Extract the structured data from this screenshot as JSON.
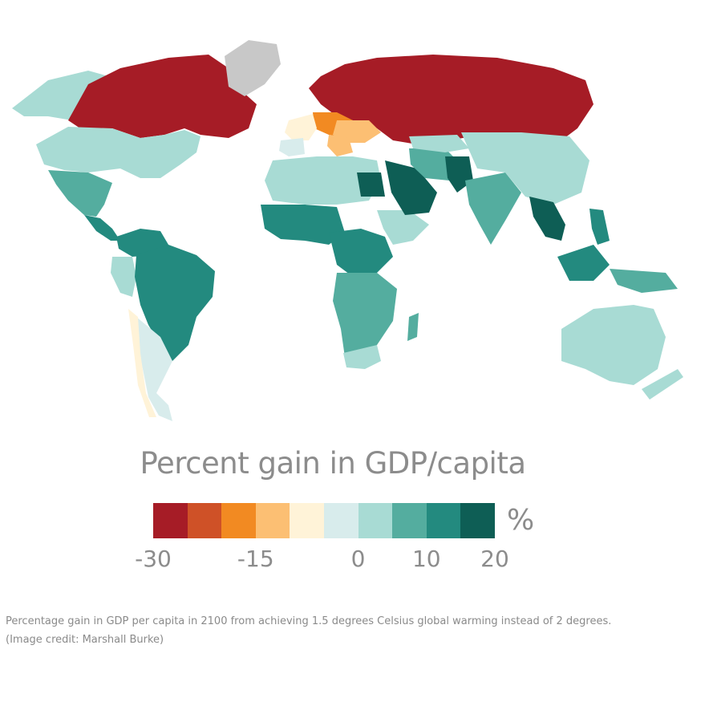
{
  "legend": {
    "title": "Percent gain in GDP/capita",
    "unit": "%",
    "colors": [
      "#a61c26",
      "#cf5127",
      "#f28a22",
      "#fcbf73",
      "#fff3d8",
      "#d8ecec",
      "#a8dbd4",
      "#54ad9f",
      "#238a7f",
      "#0e5e55"
    ],
    "ticks": [
      {
        "label": "-30",
        "value": -30
      },
      {
        "label": "-15",
        "value": -15
      },
      {
        "label": "0",
        "value": 0
      },
      {
        "label": "10",
        "value": 10
      },
      {
        "label": "20",
        "value": 20
      }
    ],
    "range": [
      -30,
      20
    ]
  },
  "caption": {
    "line1": "Percentage gain in GDP per capita in 2100 from achieving 1.5 degrees Celsius global warming instead of 2 degrees.",
    "line2": "(Image credit: Marshall Burke)"
  },
  "map": {
    "no_data_color": "#c8c8c8",
    "regions": [
      {
        "name": "canada-russia-north",
        "color": "#a61c26"
      },
      {
        "name": "greenland",
        "color": "#c8c8c8"
      }
    ]
  }
}
